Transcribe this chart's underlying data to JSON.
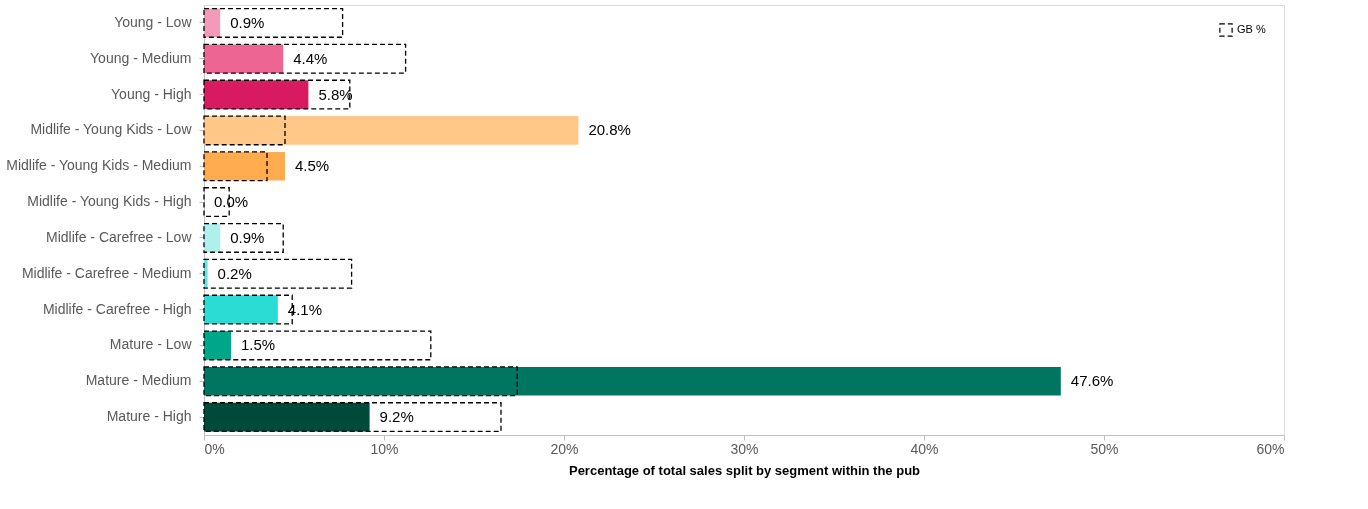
{
  "chart_data": {
    "type": "bar",
    "orientation": "horizontal",
    "xlabel": "Percentage of total sales split by segment within the pub",
    "categories": [
      "Young - Low",
      "Young - Medium",
      "Young - High",
      "Midlife - Young Kids - Low",
      "Midlife - Young Kids - Medium",
      "Midlife - Young Kids - High",
      "Midlife - Carefree - Low",
      "Midlife - Carefree - Medium",
      "Midlife - Carefree - High",
      "Mature - Low",
      "Mature - Medium",
      "Mature - High"
    ],
    "series": [
      {
        "colors": [
          "#f29ab9",
          "#ec6593",
          "#d81b60",
          "#ffc788",
          "#ffab50",
          "#ff8c1a",
          "#aef0ec",
          "#6fe0dc",
          "#2adcd4",
          "#00a68a",
          "#007560",
          "#004a3a"
        ],
        "values": [
          0.9,
          4.4,
          5.8,
          20.8,
          4.5,
          0.0,
          0.9,
          0.2,
          4.1,
          1.5,
          47.6,
          9.2
        ],
        "data_labels": true,
        "value_labels": [
          "0.9%",
          "4.4%",
          "5.8%",
          "20.8%",
          "4.5%",
          "0.0%",
          "0.9%",
          "0.2%",
          "4.1%",
          "1.5%",
          "47.6%",
          "9.2%"
        ]
      },
      {
        "name": "GB %",
        "color": "#000000",
        "line_style": "dashed",
        "values": [
          7.7,
          11.2,
          8.1,
          4.5,
          3.5,
          1.4,
          4.4,
          8.2,
          4.9,
          12.6,
          17.4,
          16.5
        ]
      }
    ],
    "xlim": [
      0,
      60
    ],
    "xticks": [
      {
        "value": 0,
        "label": "0%"
      },
      {
        "value": 10,
        "label": "10%"
      },
      {
        "value": 20,
        "label": "20%"
      },
      {
        "value": 30,
        "label": "30%"
      },
      {
        "value": 40,
        "label": "40%"
      },
      {
        "value": 50,
        "label": "50%"
      },
      {
        "value": 60,
        "label": "60%"
      }
    ],
    "grid": false,
    "legend": "top right"
  }
}
